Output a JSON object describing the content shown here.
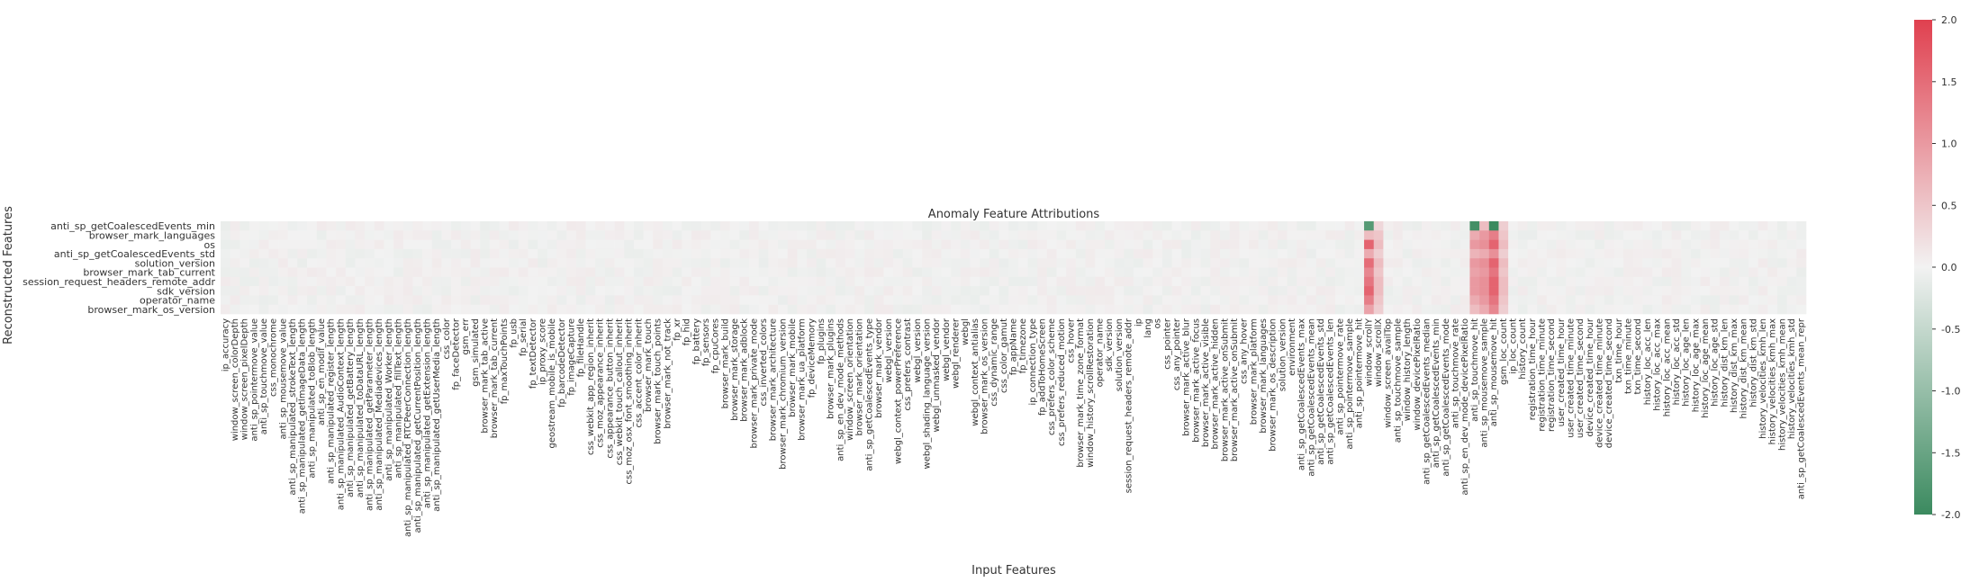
{
  "chart_data": {
    "type": "heatmap",
    "title": "Anomaly Feature Attributions",
    "xlabel": "Input Features",
    "ylabel": "Reconstructed Features",
    "y_categories": [
      "anti_sp_getCoalescedEvents_min",
      "browser_mark_languages",
      "os",
      "anti_sp_getCoalescedEvents_std",
      "solution_version",
      "browser_mark_tab_current",
      "session_request_headers_remote_addr",
      "sdk_version",
      "operator_name",
      "browser_mark_os_version"
    ],
    "x_categories": [
      "ip_accuracy",
      "window_screen_colorDepth",
      "window_screen_pixelDepth",
      "anti_sp_pointermove_value",
      "anti_sp_touchmove_value",
      "css_monochrome",
      "anti_sp_mousemove_value",
      "anti_sp_manipulated_strokeText_length",
      "anti_sp_manipulated_getImageData_length",
      "anti_sp_manipulated_toBlob_length",
      "anti_sp_en_modif_value",
      "anti_sp_manipulated_register_length",
      "anti_sp_manipulated_AudioContext_length",
      "anti_sp_manipulated_getBattery_length",
      "anti_sp_manipulated_toDataURL_length",
      "anti_sp_manipulated_getParameter_length",
      "anti_sp_manipulated_Mediadevices_length",
      "anti_sp_manipulated_Worker_length",
      "anti_sp_manipulated_fillText_length",
      "anti_sp_manipulated_RTCPeerConnection_length",
      "anti_sp_manipulated_getCurrentPosition_length",
      "anti_sp_manipulated_getExtension_length",
      "anti_sp_manipulated_getUserMedia_length",
      "css_color",
      "fp_faceDetector",
      "gsm_err",
      "gsm_simulated",
      "browser_mark_tab_active",
      "browser_mark_tab_current",
      "fp_maxTouchPoints",
      "fp_usb",
      "fp_serial",
      "fp_textDetector",
      "ip_proxy_score",
      "geostream_mobile_is_mobile",
      "fp_barcodeDetector",
      "fp_imageCapture",
      "fp_fileHandle",
      "css_webkit_app_region_inherit",
      "css_moz_appearance_inherit",
      "css_appearance_button_inherit",
      "css_webkit_touch_callout_inherit",
      "css_moz_osx_font_smoothing_inherit",
      "css_accent_color_inherit",
      "browser_mark_touch",
      "browser_mark_touch_points",
      "browser_mark_not_track",
      "fp_xr",
      "fp_hid",
      "fp_battery",
      "fp_sensors",
      "fp_cpuCores",
      "browser_mark_build",
      "browser_mark_storage",
      "browser_mark_adblock",
      "browser_mark_private_mode",
      "css_inverted_colors",
      "browser_mark_architecture",
      "browser_mark_chromium_version",
      "browser_mark_mobile",
      "browser_mark_ua_platform",
      "fp_deviceMemory",
      "fp_plugins",
      "browser_mark_plugins",
      "anti_sp_en_dev_mode_methods",
      "window_screen_orientation",
      "browser_mark_orientation",
      "anti_sp_getCoalescedEvents_type",
      "browser_mark_vendor",
      "webgl_version",
      "webgl_context_powerPreference",
      "css_prefers_contrast",
      "webgl_version",
      "webgl_shading_language_version",
      "webgl_unmasked_vendor",
      "webgl_vendor",
      "webgl_renderer",
      "webgl",
      "webgl_context_antialias",
      "browser_mark_os_version",
      "css_dynamic_range",
      "css_color_gamut",
      "fp_appName",
      "fp_timezone",
      "ip_connection_type",
      "fp_addToHomeScreen",
      "css_prefers_color_scheme",
      "css_prefers_reduced_motion",
      "css_hover",
      "browser_mark_time_zone_format",
      "window_history_scrollRestoration",
      "operator_name",
      "sdk_version",
      "solution_version",
      "session_request_headers_remote_addr",
      "ip",
      "lang",
      "os",
      "css_pointer",
      "css_any_pointer",
      "browser_mark_active_blur",
      "browser_mark_active_focus",
      "browser_mark_active_visible",
      "browser_mark_active_hidden",
      "browser_mark_active_onSubmit",
      "browser_mark_active_onSubmit",
      "css_any_hover",
      "browser_mark_platform",
      "browser_mark_languages",
      "browser_mark_os_description",
      "solution_version",
      "environment",
      "anti_sp_getCoalescedEvents_max",
      "anti_sp_getCoalescedEvents_mean",
      "anti_sp_getCoalescedEvents_std",
      "anti_sp_getCoalescedEvents_len",
      "anti_sp_pointermove_rate",
      "anti_sp_pointermove_sample",
      "anti_sp_pointermove_hit",
      "window_scrollY",
      "window_scrollX",
      "window_screen_availTop",
      "anti_sp_touchmove_sample",
      "window_history_length",
      "window_devicePixelRatio",
      "anti_sp_getCoalescedEvents_median",
      "anti_sp_getCoalescedEvents_min",
      "anti_sp_getCoalescedEvents_mode",
      "anti_sp_touchmove_rate",
      "anti_sp_en_dev_mode_devicePixelRatio",
      "anti_sp_touchmove_hit",
      "anti_sp_mousemove_sample",
      "anti_sp_mousemove_hit",
      "gsm_loc_count",
      "ip_loc_count",
      "history_count",
      "registration_time_hour",
      "registration_time_minute",
      "registration_time_second",
      "user_created_time_hour",
      "user_created_time_minute",
      "user_created_time_second",
      "device_created_time_hour",
      "device_created_time_minute",
      "device_created_time_second",
      "txn_time_hour",
      "txn_time_minute",
      "txn_time_second",
      "history_loc_acc_len",
      "history_loc_acc_max",
      "history_loc_acc_mean",
      "history_loc_acc_std",
      "history_loc_age_len",
      "history_loc_age_max",
      "history_loc_age_mean",
      "history_loc_age_std",
      "history_dist_km_len",
      "history_dist_km_max",
      "history_dist_km_mean",
      "history_dist_km_std",
      "history_velocities_kmh_len",
      "history_velocities_kmh_max",
      "history_velocities_kmh_mean",
      "history_velocities_kmh_std",
      "anti_sp_getCoalescedEvents_mean_repr"
    ],
    "highlights": [
      {
        "x_index": 119,
        "values": [
          -1.7,
          0.6,
          1.6,
          0.8,
          1.5,
          1.2,
          1.4,
          1.6,
          1.3,
          0.9
        ]
      },
      {
        "x_index": 120,
        "values": [
          0.3,
          0.5,
          0.6,
          0.4,
          0.6,
          0.5,
          0.6,
          0.6,
          0.5,
          0.4
        ]
      },
      {
        "x_index": 130,
        "values": [
          -1.9,
          0.8,
          1.0,
          0.7,
          1.0,
          0.9,
          1.0,
          1.0,
          0.8,
          0.6
        ]
      },
      {
        "x_index": 131,
        "values": [
          0.6,
          1.0,
          1.1,
          0.8,
          1.1,
          1.0,
          1.1,
          1.1,
          1.0,
          0.8
        ]
      },
      {
        "x_index": 132,
        "values": [
          -2.0,
          1.3,
          1.6,
          1.1,
          1.6,
          1.4,
          1.6,
          1.6,
          1.4,
          1.2
        ]
      },
      {
        "x_index": 133,
        "values": [
          0.4,
          0.5,
          0.6,
          0.4,
          0.6,
          0.5,
          0.6,
          0.6,
          0.5,
          0.4
        ]
      }
    ],
    "colorbar": {
      "vmin": -2.0,
      "vmax": 2.0,
      "ticks": [
        "2.0",
        "1.5",
        "1.0",
        "0.5",
        "0.0",
        "-0.5",
        "-1.0",
        "-1.5",
        "-2.0"
      ],
      "colors": {
        "negative": "#3b8a5f",
        "neutral": "#f2f2f2",
        "positive": "#e0404f"
      }
    }
  }
}
